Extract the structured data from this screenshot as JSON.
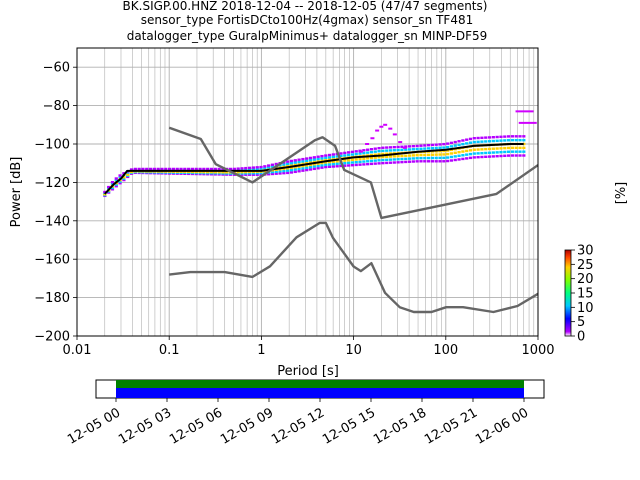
{
  "title_lines": [
    "BK.SIGP.00.HNZ   2018-12-04 -- 2018-12-05  (47/47 segments)",
    "sensor_type FortisDCto100Hz(4gmax) sensor_sn TF481",
    "datalogger_type GuralpMinimus+ datalogger_sn MINP-DF59"
  ],
  "colors": {
    "noise_model": "#666666",
    "mode_line": "#000000",
    "grid": "#b0b0b0",
    "coverage_bar_data": "#0000ff",
    "coverage_bar_gaps": "#008000"
  },
  "chart_data": [
    {
      "type": "heatmap",
      "subtype": "probabilistic power spectral density",
      "xlabel": "Period [s]",
      "ylabel": "Power [dB]",
      "x_scale": "log",
      "xlim": [
        0.01,
        1000
      ],
      "ylim": [
        -200,
        -50
      ],
      "x_ticks": [
        0.01,
        0.1,
        1,
        10,
        100,
        1000
      ],
      "x_tick_labels": [
        "0.01",
        "0.1",
        "1",
        "10",
        "100",
        "1000"
      ],
      "y_ticks": [
        -200,
        -180,
        -160,
        -140,
        -120,
        -100,
        -80,
        -60
      ],
      "y_tick_labels": [
        "−200",
        "−180",
        "−160",
        "−140",
        "−120",
        "−100",
        "−80",
        "−60"
      ],
      "grid": true,
      "series": [
        {
          "role": "mode",
          "x": [
            0.02,
            0.025,
            0.03,
            0.035,
            0.5,
            1,
            2,
            5,
            10,
            20,
            50,
            100,
            200,
            500,
            700
          ],
          "y": [
            -126,
            -121,
            -118,
            -114,
            -114,
            -114,
            -112,
            -109,
            -107,
            -106,
            -104,
            -103,
            -101,
            -100,
            -100
          ]
        },
        {
          "role": "new_high_noise_model",
          "x": [
            0.1,
            0.22,
            0.32,
            0.8,
            3.8,
            4.6,
            6.3,
            7.9,
            15.4,
            20,
            354.8,
            1000
          ],
          "y": [
            -91.5,
            -97.4,
            -110.5,
            -120,
            -98,
            -96.5,
            -101,
            -113.5,
            -120,
            -138.5,
            -126,
            -111
          ]
        },
        {
          "role": "new_low_noise_model",
          "x": [
            0.1,
            0.17,
            0.4,
            0.8,
            1.24,
            2.4,
            4.3,
            5,
            6,
            10,
            12,
            15.6,
            21.9,
            31.6,
            45,
            70,
            101,
            154,
            328,
            600,
            1000
          ],
          "y": [
            -168,
            -166.7,
            -166.7,
            -169.2,
            -163.7,
            -148.6,
            -141.1,
            -141.1,
            -149,
            -163.8,
            -166.2,
            -162.1,
            -177.5,
            -185,
            -187.5,
            -187.5,
            -185,
            -185,
            -187.5,
            -184.4,
            -178
          ]
        }
      ],
      "scatter_band": {
        "x": [
          0.02,
          0.025,
          0.03,
          0.04,
          0.5,
          1,
          2,
          5,
          10,
          20,
          50,
          100,
          200,
          500,
          700
        ],
        "lo": [
          -127,
          -123,
          -120,
          -115,
          -116,
          -116,
          -115,
          -112,
          -111,
          -110,
          -109,
          -109,
          -107,
          -106,
          -106
        ],
        "hi": [
          -125,
          -119,
          -116,
          -113,
          -113,
          -112,
          -109,
          -106,
          -104,
          -102,
          -101,
          -100,
          -97,
          -96,
          -96
        ]
      },
      "outliers": [
        {
          "x": 12,
          "y": -104
        },
        {
          "x": 14,
          "y": -100
        },
        {
          "x": 16,
          "y": -97
        },
        {
          "x": 18,
          "y": -93
        },
        {
          "x": 20,
          "y": -91
        },
        {
          "x": 22,
          "y": -90
        },
        {
          "x": 25,
          "y": -92
        },
        {
          "x": 28,
          "y": -95
        },
        {
          "x": 32,
          "y": -99
        },
        {
          "x": 36,
          "y": -102
        },
        {
          "x": 600,
          "y": -83
        },
        {
          "x": 650,
          "y": -89
        }
      ]
    },
    {
      "type": "colorbar",
      "label": "[%]",
      "range": [
        0,
        30
      ],
      "ticks": [
        0,
        5,
        10,
        15,
        20,
        25,
        30
      ],
      "tick_labels": [
        "0",
        "5",
        "10",
        "15",
        "20",
        "25",
        "30"
      ]
    },
    {
      "type": "timeline",
      "tick_labels": [
        "12-05 00",
        "12-05 03",
        "12-05 06",
        "12-05 09",
        "12-05 12",
        "12-05 15",
        "12-05 18",
        "12-05 21",
        "12-06 00"
      ]
    }
  ]
}
